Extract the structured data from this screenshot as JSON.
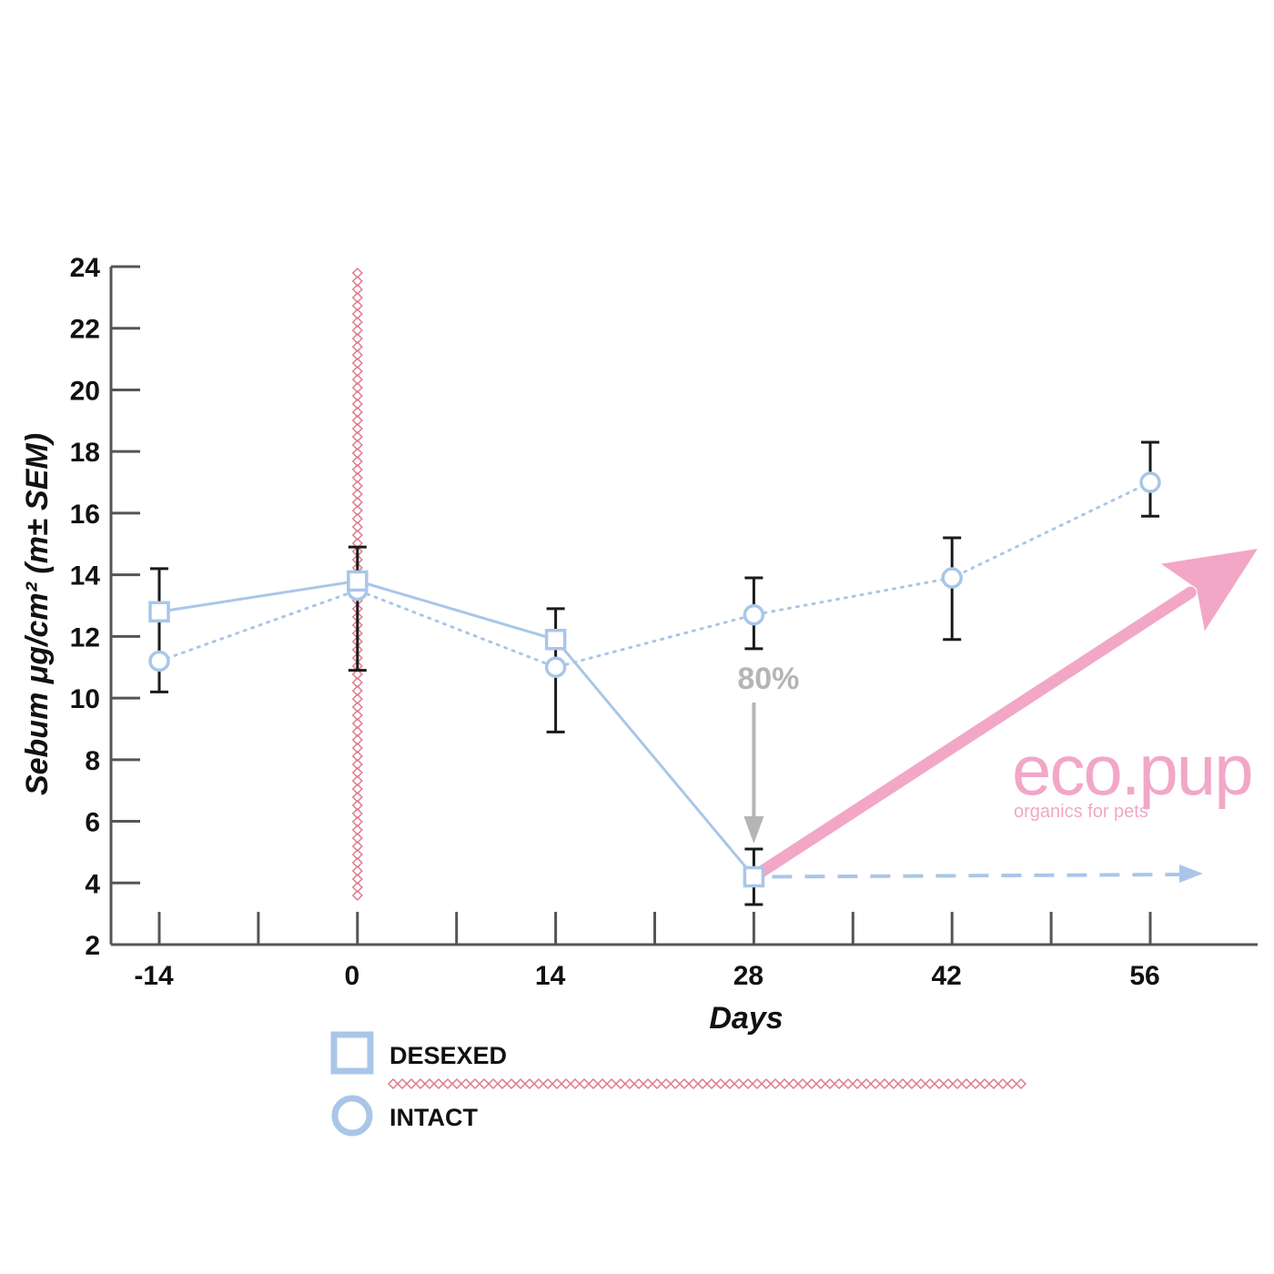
{
  "chart_data": {
    "type": "line",
    "xlabel": "Days",
    "ylabel": "Sebum  μg/cm² (m± SEM)",
    "x": [
      -14,
      0,
      14,
      28,
      42,
      56
    ],
    "x_ticks": [
      "-14",
      "0",
      "14",
      "28",
      "42",
      "56"
    ],
    "xlim": [
      -14,
      56
    ],
    "ylim": [
      2,
      24
    ],
    "y_ticks": [
      2,
      4,
      6,
      8,
      10,
      12,
      14,
      16,
      18,
      20,
      22,
      24
    ],
    "grid": false,
    "legend_position": "bottom-left",
    "series": [
      {
        "name": "DESEXED",
        "marker": "square",
        "line": "solid",
        "color": "#a9c6e8",
        "x": [
          -14,
          0,
          14,
          28
        ],
        "values": [
          12.8,
          13.8,
          11.9,
          4.2
        ],
        "error_low": [
          null,
          10.9,
          null,
          3.3
        ],
        "error_high": [
          null,
          14.9,
          null,
          5.1
        ]
      },
      {
        "name": "INTACT",
        "marker": "circle",
        "line": "dotted",
        "color": "#a9c6e8",
        "x": [
          -14,
          0,
          14,
          28,
          42,
          56
        ],
        "values": [
          11.2,
          13.5,
          11.0,
          12.7,
          13.9,
          17.0
        ],
        "error_low": [
          10.2,
          null,
          8.9,
          11.6,
          11.9,
          15.9
        ],
        "error_high": [
          14.2,
          null,
          12.9,
          13.9,
          15.2,
          18.3
        ]
      }
    ],
    "annotations": [
      {
        "text": "80%",
        "x": 28,
        "y": 10.7,
        "color": "#b5b5b5"
      }
    ],
    "treatment_marker": {
      "x": 0,
      "color": "#e0788b",
      "style": "diamond-chain"
    },
    "trend_arrows": [
      {
        "color": "#f2a7c7",
        "from": [
          28,
          4.2
        ],
        "to": [
          56,
          15
        ]
      },
      {
        "color": "#a9c6e8",
        "style": "dashed",
        "from": [
          28,
          4.2
        ],
        "to": [
          56,
          4.2
        ]
      }
    ]
  },
  "logo": {
    "name": "eco.pup",
    "tagline": "organics for pets"
  }
}
